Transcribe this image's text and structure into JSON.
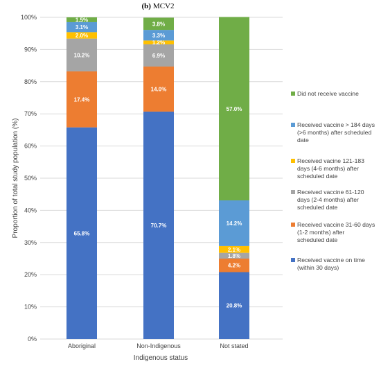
{
  "chart_data": {
    "type": "bar",
    "stacked": true,
    "title_prefix": "(b)",
    "title": "MCV2",
    "xlabel": "Indigenous status",
    "ylabel": "Proportion of total study population (%)",
    "ylim": [
      0,
      100
    ],
    "y_ticks": [
      "0%",
      "10%",
      "20%",
      "30%",
      "40%",
      "50%",
      "60%",
      "70%",
      "80%",
      "90%",
      "100%"
    ],
    "grid": true,
    "legend_position": "right",
    "categories": [
      "Aboriginal",
      "Non-Indigenous",
      "Not stated"
    ],
    "series": [
      {
        "name": "Received vaccine on time (within 30 days)",
        "legend_lines": [
          "Received vaccine on time",
          "(within 30 days)"
        ],
        "color": "#4472c4",
        "values": [
          65.8,
          70.7,
          20.8
        ],
        "labels": [
          "65.8%",
          "70.7%",
          "20.8%"
        ]
      },
      {
        "name": "Received vaccine 31-60 days (1-2 months) after scheduled date",
        "legend_lines": [
          "Received vaccine 31-60 days",
          "(1-2 months) after",
          "scheduled date"
        ],
        "color": "#ed7d31",
        "values": [
          17.4,
          14.0,
          4.2
        ],
        "labels": [
          "17.4%",
          "14.0%",
          "4.2%"
        ]
      },
      {
        "name": "Received vaccine 61-120 days (2-4 months) after scheduled date",
        "legend_lines": [
          "Received vaccine 61-120",
          "days (2-4 months) after",
          "scheduled date"
        ],
        "color": "#a5a5a5",
        "values": [
          10.2,
          6.9,
          1.8
        ],
        "labels": [
          "10.2%",
          "6.9%",
          "1.8%"
        ]
      },
      {
        "name": "Received vacine 121-183 days (4-6 months) after scheduled date",
        "legend_lines": [
          "Received vacine 121-183",
          "days (4-6 months) after",
          "scheduled date"
        ],
        "color": "#ffc000",
        "values": [
          2.0,
          1.2,
          2.1
        ],
        "labels": [
          "2.0%",
          "1.2%",
          "2.1%"
        ]
      },
      {
        "name": "Received vaccine > 184 days (>6 months) after scheduled date",
        "legend_lines": [
          "Received vaccine > 184 days",
          "(>6 months) after scheduled",
          "date"
        ],
        "color": "#5b9bd5",
        "values": [
          3.1,
          3.3,
          14.2
        ],
        "labels": [
          "3.1%",
          "3.3%",
          "14.2%"
        ]
      },
      {
        "name": "Did not receive vaccine",
        "legend_lines": [
          "Did not receive vaccine"
        ],
        "color": "#70ad47",
        "values": [
          1.5,
          3.8,
          57.0
        ],
        "labels": [
          "1.5%",
          "3.8%",
          "57.0%"
        ]
      }
    ]
  }
}
